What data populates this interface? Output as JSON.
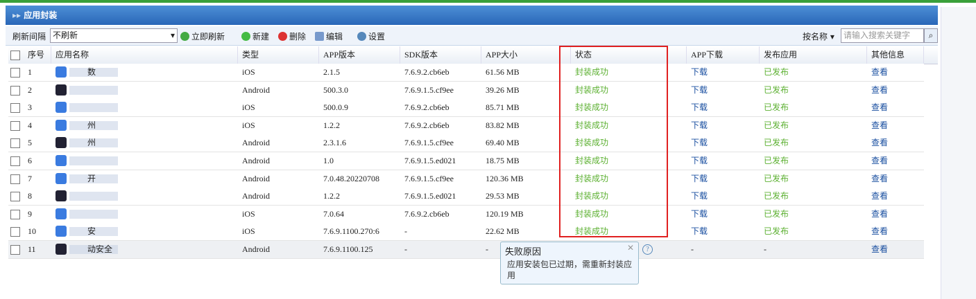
{
  "header": {
    "title": "应用封装"
  },
  "toolbar": {
    "refresh_label": "刷新间隔",
    "refresh_option": "不刷新",
    "refresh_now": "立即刷新",
    "new": "新建",
    "delete": "删除",
    "edit": "编辑",
    "settings": "设置",
    "search_by": "按名称",
    "search_placeholder": "请输入搜索关键字"
  },
  "table": {
    "columns": [
      "序号",
      "应用名称",
      "类型",
      "APP版本",
      "SDK版本",
      "APP大小",
      "状态",
      "APP下载",
      "发布应用",
      "其他信息"
    ],
    "rows": [
      {
        "no": 1,
        "name": "数",
        "type": "iOS",
        "app_version": "2.1.5",
        "sdk_version": "7.6.9.2.cb6eb",
        "size": "61.56 MB",
        "status": "封装成功",
        "download": "下载",
        "publish": "已发布",
        "info": "查看"
      },
      {
        "no": 2,
        "type": "Android",
        "app_version": "500.3.0",
        "sdk_version": "7.6.9.1.5.cf9ee",
        "size": "39.26 MB",
        "status": "封装成功",
        "download": "下载",
        "publish": "已发布",
        "info": "查看"
      },
      {
        "no": 3,
        "type": "iOS",
        "app_version": "500.0.9",
        "sdk_version": "7.6.9.2.cb6eb",
        "size": "85.71 MB",
        "status": "封装成功",
        "download": "下载",
        "publish": "已发布",
        "info": "查看"
      },
      {
        "no": 4,
        "name": "州",
        "type": "iOS",
        "app_version": "1.2.2",
        "sdk_version": "7.6.9.2.cb6eb",
        "size": "83.82 MB",
        "status": "封装成功",
        "download": "下载",
        "publish": "已发布",
        "info": "查看"
      },
      {
        "no": 5,
        "name": "州",
        "type": "Android",
        "app_version": "2.3.1.6",
        "sdk_version": "7.6.9.1.5.cf9ee",
        "size": "69.40 MB",
        "status": "封装成功",
        "download": "下载",
        "publish": "已发布",
        "info": "查看"
      },
      {
        "no": 6,
        "type": "Android",
        "app_version": "1.0",
        "sdk_version": "7.6.9.1.5.ed021",
        "size": "18.75 MB",
        "status": "封装成功",
        "download": "下载",
        "publish": "已发布",
        "info": "查看"
      },
      {
        "no": 7,
        "name": "开",
        "type": "Android",
        "app_version": "7.0.48.20220708",
        "sdk_version": "7.6.9.1.5.cf9ee",
        "size": "120.36 MB",
        "status": "封装成功",
        "download": "下载",
        "publish": "已发布",
        "info": "查看"
      },
      {
        "no": 8,
        "type": "Android",
        "app_version": "1.2.2",
        "sdk_version": "7.6.9.1.5.ed021",
        "size": "29.53 MB",
        "status": "封装成功",
        "download": "下载",
        "publish": "已发布",
        "info": "查看"
      },
      {
        "no": 9,
        "type": "iOS",
        "app_version": "7.0.64",
        "sdk_version": "7.6.9.2.cb6eb",
        "size": "120.19 MB",
        "status": "封装成功",
        "download": "下载",
        "publish": "已发布",
        "info": "查看"
      },
      {
        "no": 10,
        "name": "安",
        "type": "iOS",
        "app_version": "7.6.9.1100.270:6",
        "sdk_version": "-",
        "size": "22.62 MB",
        "status": "封装成功",
        "download": "下载",
        "publish": "已发布",
        "info": "查看"
      },
      {
        "no": 11,
        "name": "动安全",
        "type": "Android",
        "app_version": "7.6.9.1100.125",
        "sdk_version": "-",
        "size": "-",
        "download": "-",
        "publish": "-",
        "info": "查看"
      }
    ]
  },
  "tooltip": {
    "title": "失败原因",
    "message": "应用安装包已过期，需重新封装应用"
  }
}
